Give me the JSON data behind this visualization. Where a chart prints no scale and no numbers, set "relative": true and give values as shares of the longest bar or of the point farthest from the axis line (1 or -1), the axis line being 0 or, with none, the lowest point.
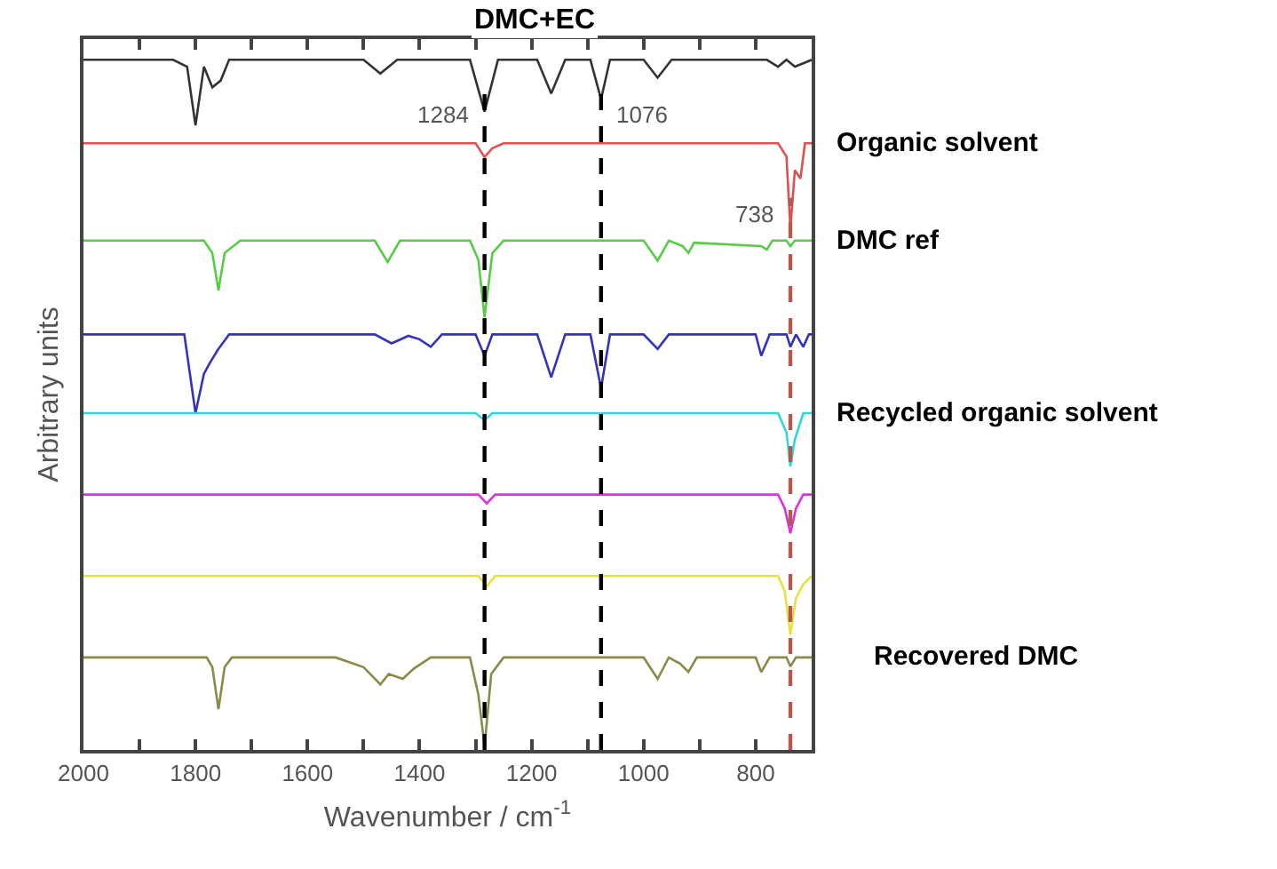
{
  "chart_data": {
    "type": "line",
    "relative": true,
    "xlabel": "Wavenumber / cm$^{-1}$",
    "ylabel": "Arbitrary units",
    "xlim": [
      2000,
      700
    ],
    "xticks": [
      2000,
      {
        "value": 1900,
        "label": null
      },
      1800,
      {
        "value": 1700,
        "label": null
      },
      1600,
      {
        "value": 1500,
        "label": null
      },
      1400,
      {
        "value": 1300,
        "label": null
      },
      1200,
      {
        "value": 1100,
        "label": null
      },
      1000,
      {
        "value": 900,
        "label": null
      },
      800
    ],
    "legend": false,
    "marker": "none",
    "line_style": "solid",
    "series": [
      {
        "name": "DMC+EC",
        "color": "#333333",
        "x": [
          2000,
          1840,
          1815,
          1800,
          1785,
          1770,
          1755,
          1740,
          1500,
          1470,
          1440,
          1310,
          1284,
          1260,
          1190,
          1165,
          1140,
          1095,
          1076,
          1060,
          1000,
          975,
          950,
          780,
          760,
          745,
          730,
          715,
          700
        ],
        "values": [
          1.0,
          1.0,
          0.99,
          0.905,
          0.99,
          0.96,
          0.97,
          1.0,
          1.0,
          0.98,
          1.0,
          1.0,
          0.925,
          1.0,
          1.0,
          0.951,
          1.0,
          1.0,
          0.943,
          1.0,
          1.0,
          0.974,
          1.0,
          1.0,
          0.99,
          1.0,
          0.99,
          0.995,
          1.0
        ]
      },
      {
        "name": "Organic solvent",
        "color": "#e05050",
        "x": [
          2000,
          1300,
          1284,
          1270,
          1250,
          760,
          745,
          738,
          730,
          720,
          712,
          700
        ],
        "values": [
          0.879,
          0.879,
          0.859,
          0.872,
          0.879,
          0.879,
          0.86,
          0.756,
          0.84,
          0.828,
          0.879,
          0.879
        ]
      },
      {
        "name": "DMC ref",
        "color": "#55cc44",
        "x": [
          2000,
          1785,
          1770,
          1759,
          1748,
          1720,
          1480,
          1457,
          1435,
          1310,
          1295,
          1284,
          1270,
          1250,
          1000,
          975,
          955,
          930,
          920,
          910,
          790,
          780,
          770,
          745,
          738,
          730,
          700
        ],
        "values": [
          0.738,
          0.738,
          0.72,
          0.666,
          0.72,
          0.738,
          0.738,
          0.707,
          0.738,
          0.738,
          0.71,
          0.627,
          0.72,
          0.738,
          0.738,
          0.709,
          0.738,
          0.73,
          0.72,
          0.735,
          0.73,
          0.725,
          0.738,
          0.738,
          0.73,
          0.738,
          0.738
        ]
      },
      {
        "color": "#3333bb",
        "x": [
          2000,
          1820,
          1800,
          1785,
          1775,
          1760,
          1740,
          1480,
          1450,
          1420,
          1400,
          1380,
          1360,
          1300,
          1284,
          1270,
          1190,
          1165,
          1140,
          1095,
          1076,
          1060,
          1000,
          975,
          955,
          800,
          790,
          775,
          745,
          738,
          728,
          715,
          705,
          700
        ],
        "values": [
          0.602,
          0.602,
          0.488,
          0.545,
          0.56,
          0.58,
          0.602,
          0.602,
          0.589,
          0.6,
          0.595,
          0.584,
          0.602,
          0.602,
          0.571,
          0.602,
          0.602,
          0.54,
          0.602,
          0.602,
          0.524,
          0.602,
          0.602,
          0.581,
          0.602,
          0.602,
          0.571,
          0.602,
          0.602,
          0.584,
          0.602,
          0.584,
          0.602,
          0.602
        ]
      },
      {
        "name": "Recycled organic solvent",
        "color": "#33d6d6",
        "x": [
          2000,
          1300,
          1284,
          1270,
          760,
          745,
          738,
          730,
          715,
          700
        ],
        "values": [
          0.488,
          0.488,
          0.478,
          0.488,
          0.488,
          0.46,
          0.411,
          0.45,
          0.488,
          0.488
        ]
      },
      {
        "color": "#dd33dd",
        "x": [
          2000,
          1295,
          1280,
          1265,
          760,
          748,
          738,
          728,
          715,
          700
        ],
        "values": [
          0.37,
          0.37,
          0.357,
          0.37,
          0.37,
          0.35,
          0.314,
          0.35,
          0.37,
          0.37
        ]
      },
      {
        "color": "#e8e040",
        "x": [
          2000,
          1295,
          1280,
          1265,
          760,
          748,
          738,
          728,
          715,
          700
        ],
        "values": [
          0.252,
          0.252,
          0.237,
          0.252,
          0.252,
          0.23,
          0.167,
          0.22,
          0.24,
          0.252
        ]
      },
      {
        "name": "Recovered DMC",
        "color": "#8a8a4a",
        "x": [
          2000,
          1780,
          1770,
          1759,
          1748,
          1735,
          1550,
          1500,
          1470,
          1455,
          1430,
          1410,
          1380,
          1310,
          1295,
          1284,
          1272,
          1250,
          1000,
          975,
          955,
          935,
          920,
          905,
          800,
          790,
          775,
          745,
          738,
          728,
          700
        ],
        "values": [
          0.134,
          0.134,
          0.12,
          0.059,
          0.12,
          0.134,
          0.134,
          0.12,
          0.095,
          0.11,
          0.103,
          0.118,
          0.134,
          0.134,
          0.08,
          0.005,
          0.11,
          0.134,
          0.134,
          0.103,
          0.134,
          0.125,
          0.113,
          0.134,
          0.134,
          0.113,
          0.134,
          0.134,
          0.121,
          0.134,
          0.134
        ]
      }
    ],
    "ref_lines": [
      {
        "axis": "x",
        "value": 1284,
        "label": "1284",
        "color": "#000000",
        "line_style": "dashed"
      },
      {
        "axis": "x",
        "value": 1076,
        "label": "1076",
        "color": "#000000",
        "line_style": "dashed"
      },
      {
        "axis": "x",
        "value": 738,
        "label": "738",
        "color": "#b05a50",
        "line_style": "dashed"
      }
    ]
  }
}
